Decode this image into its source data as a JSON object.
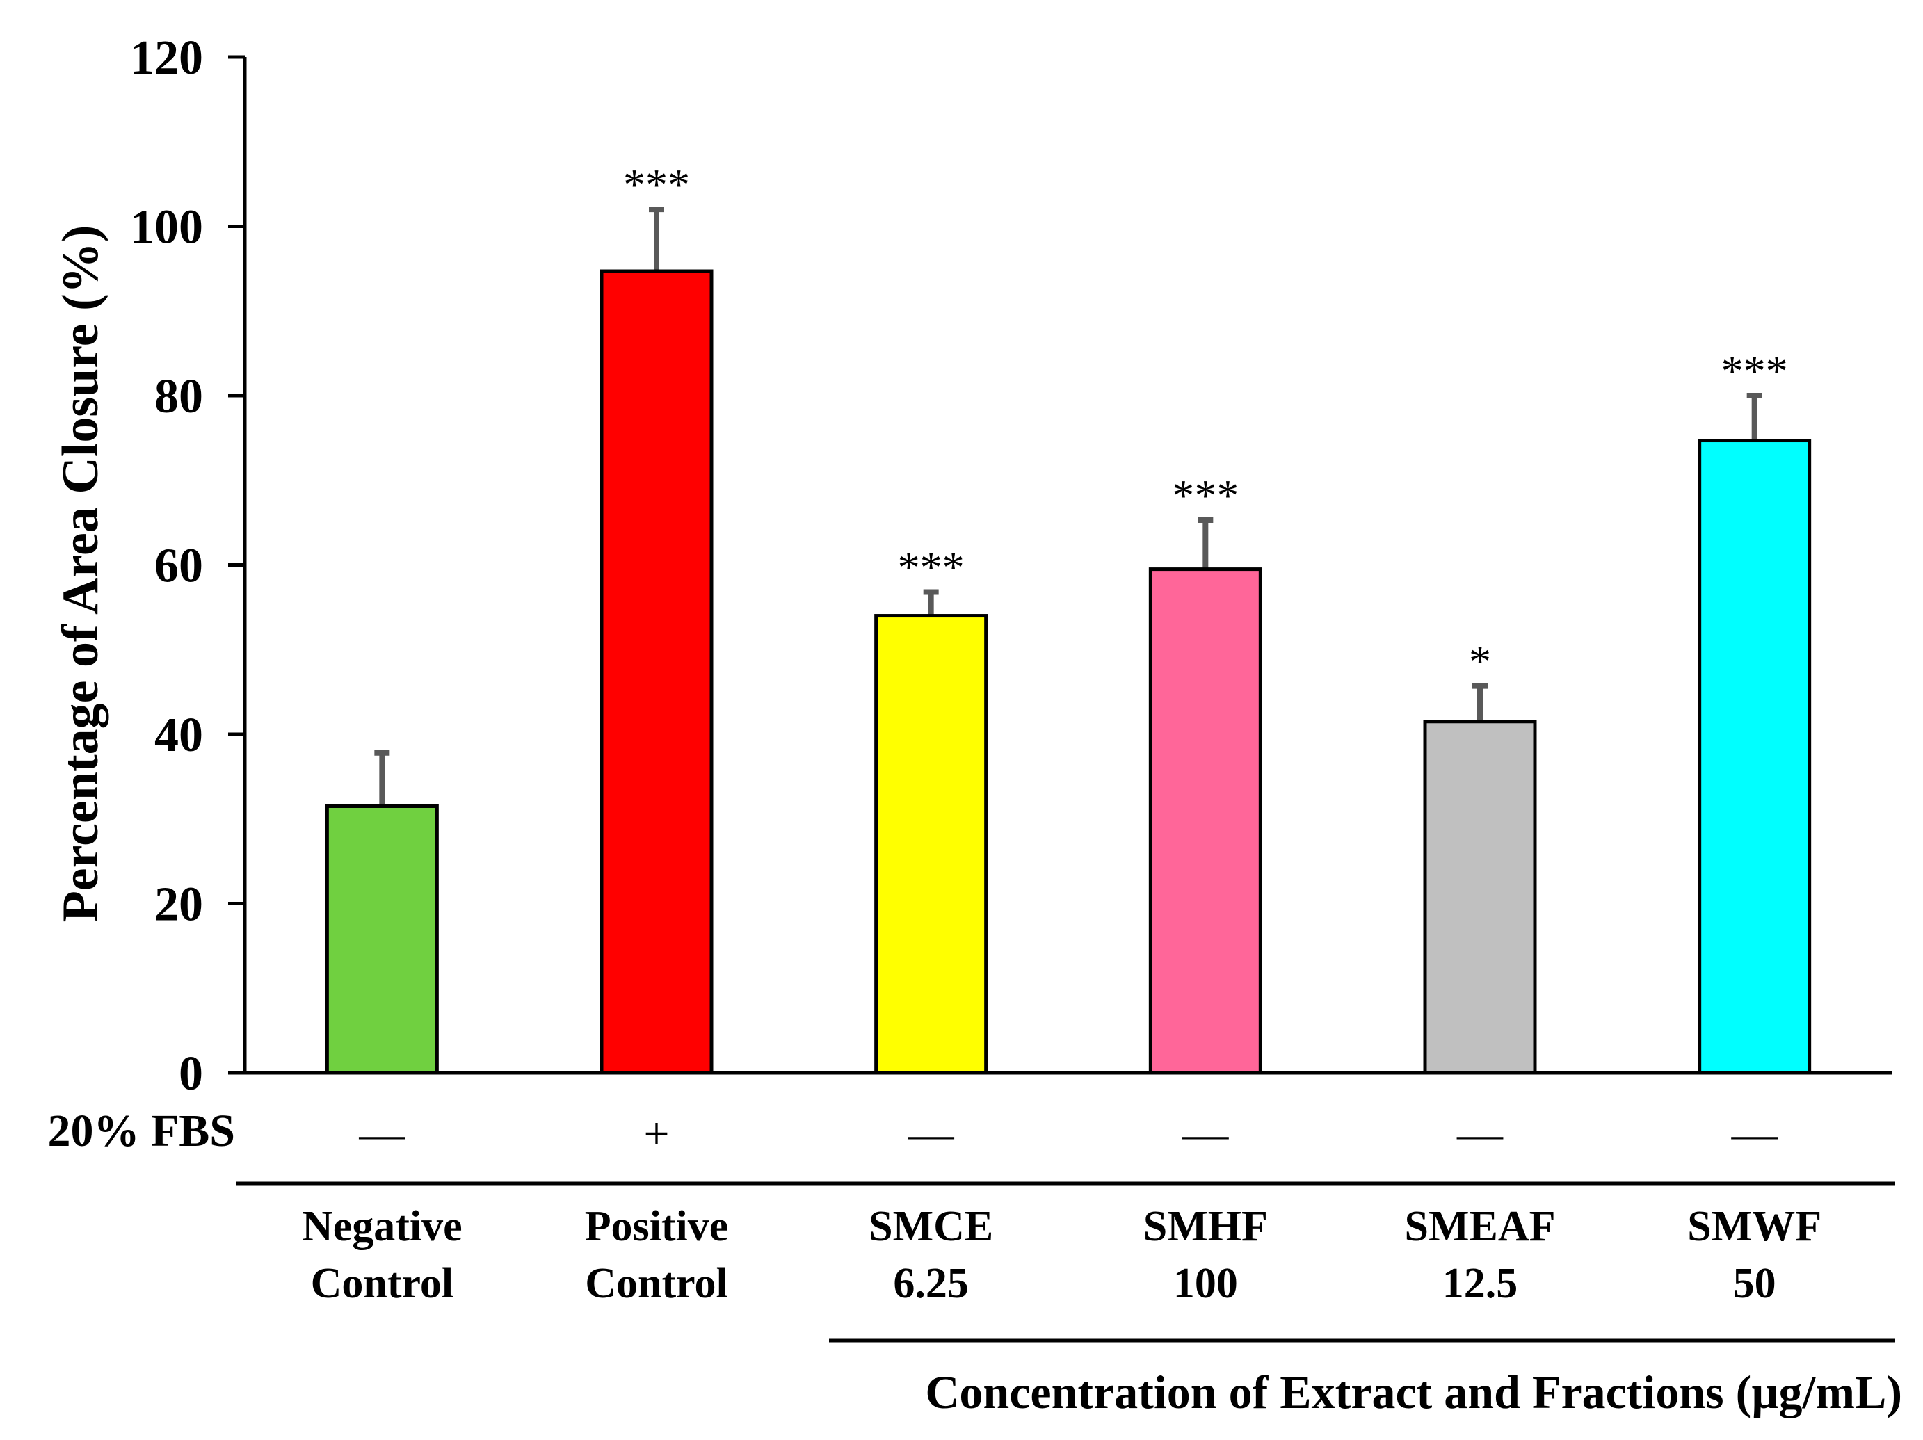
{
  "chart_data": {
    "type": "bar",
    "ylabel": "Percentage of Area Closure (%)",
    "xlabel": "Concentration of Extract and Fractions (µg/mL)",
    "ylim": [
      0,
      120
    ],
    "yticks": [
      0,
      20,
      40,
      60,
      80,
      100,
      120
    ],
    "row_label": "20% FBS",
    "categories": [
      {
        "line1": "Negative",
        "line2": "Control",
        "fbs": "—",
        "value": 31.5,
        "error": 6.3,
        "sig": "",
        "color": "#70d040"
      },
      {
        "line1": "Positive",
        "line2": "Control",
        "fbs": "+",
        "value": 94.7,
        "error": 7.3,
        "sig": "***",
        "color": "#ff0000"
      },
      {
        "line1": "SMCE",
        "line2": "6.25",
        "fbs": "—",
        "value": 54.0,
        "error": 2.8,
        "sig": "***",
        "color": "#ffff00"
      },
      {
        "line1": "SMHF",
        "line2": "100",
        "fbs": "—",
        "value": 59.5,
        "error": 5.8,
        "sig": "***",
        "color": "#ff6699"
      },
      {
        "line1": "SMEAF",
        "line2": "12.5",
        "fbs": "—",
        "value": 41.5,
        "error": 4.2,
        "sig": "*",
        "color": "#c0c0c0"
      },
      {
        "line1": "SMWF",
        "line2": "50",
        "fbs": "—",
        "value": 74.7,
        "error": 5.3,
        "sig": "***",
        "color": "#00ffff"
      }
    ]
  }
}
